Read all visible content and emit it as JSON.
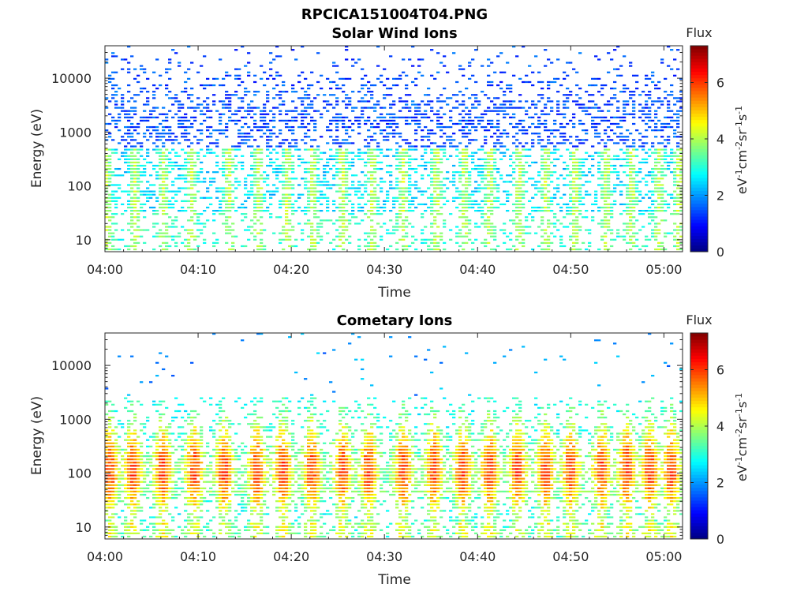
{
  "figure": {
    "title": "RPCICA151004T04.PNG"
  },
  "chart_data": [
    {
      "type": "heatmap",
      "title": "Solar Wind Ions",
      "xlabel": "Time",
      "ylabel": "Energy (eV)",
      "x_ticks": [
        "04:00",
        "04:10",
        "04:20",
        "04:30",
        "04:40",
        "04:50",
        "05:00"
      ],
      "x_range": [
        "04:00",
        "05:02"
      ],
      "y_scale": "log",
      "y_ticks": [
        "10",
        "100",
        "1000",
        "10000"
      ],
      "y_range": [
        6,
        40000
      ],
      "colorbar": {
        "label": "Flux",
        "unit": "eV-1cm-2sr-1s-1",
        "ticks": [
          "0",
          "2",
          "4",
          "6"
        ],
        "range": [
          0,
          7.3
        ],
        "colormap": "jet"
      },
      "bursts_minutes": [
        0.2,
        3.2,
        6.3,
        9.3,
        13.3,
        16.5,
        19.6,
        22.3,
        25.5,
        28.7,
        32.0,
        35.6,
        38.6,
        41.3,
        44.5,
        47.3,
        50.5,
        53.8,
        56.5,
        59.5,
        61.6
      ],
      "description_peak_flux": 4.3,
      "background_flux": 1.2
    },
    {
      "type": "heatmap",
      "title": "Cometary Ions",
      "xlabel": "Time",
      "ylabel": "Energy (eV)",
      "x_ticks": [
        "04:00",
        "04:10",
        "04:20",
        "04:30",
        "04:40",
        "04:50",
        "05:00"
      ],
      "x_range": [
        "04:00",
        "05:02"
      ],
      "y_scale": "log",
      "y_ticks": [
        "10",
        "100",
        "1000",
        "10000"
      ],
      "y_range": [
        6,
        40000
      ],
      "colorbar": {
        "label": "Flux",
        "unit": "eV-1cm-2sr-1s-1",
        "ticks": [
          "0",
          "2",
          "4",
          "6"
        ],
        "range": [
          0,
          7.3
        ],
        "colormap": "jet"
      },
      "bursts_minutes": [
        0.5,
        3.0,
        6.2,
        9.6,
        12.8,
        16.3,
        19.1,
        22.2,
        25.5,
        28.3,
        32.0,
        35.3,
        38.4,
        41.3,
        44.3,
        47.3,
        50.0,
        53.3,
        56.0,
        58.5,
        60.8
      ],
      "peak_flux": 5.8,
      "background_flux": 2.6
    }
  ]
}
